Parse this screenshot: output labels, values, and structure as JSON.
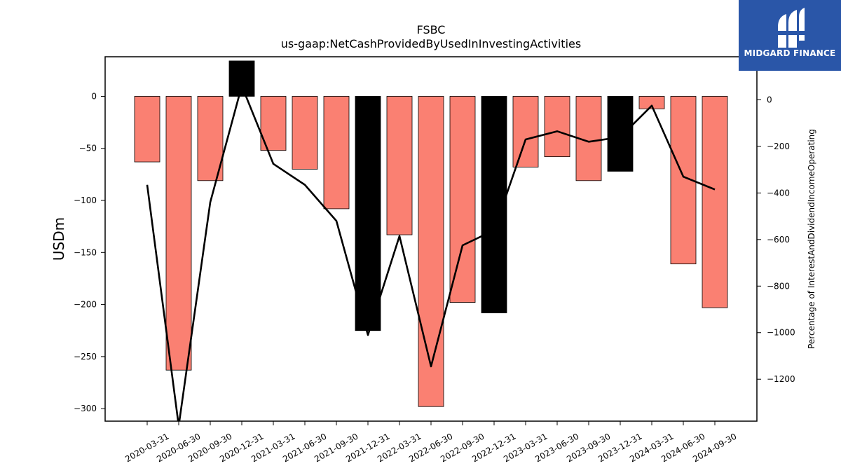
{
  "brand": {
    "name": "MIDGARD FINANCE",
    "color": "#2a56a8"
  },
  "chart_data": {
    "type": "bar",
    "title": "FSBC",
    "subtitle": "us-gaap:NetCashProvidedByUsedInInvestingActivities",
    "ylabel": "USDm",
    "ylabel_right": "Percentage of InterestAndDividendIncomeOperating",
    "categories": [
      "2020-03-31",
      "2020-06-30",
      "2020-09-30",
      "2020-12-31",
      "2021-03-31",
      "2021-06-30",
      "2021-09-30",
      "2021-12-31",
      "2022-03-31",
      "2022-06-30",
      "2022-09-30",
      "2022-12-31",
      "2023-03-31",
      "2023-06-30",
      "2023-09-30",
      "2023-12-31",
      "2024-03-31",
      "2024-06-30",
      "2024-09-30"
    ],
    "series": [
      {
        "values": [
          -63,
          -263,
          -81,
          34,
          -52,
          -70,
          -108,
          -225,
          -133,
          -298,
          -198,
          -208,
          -68,
          -58,
          -81,
          -72,
          -12,
          -161,
          -203
        ],
        "colors": [
          "#fa8072",
          "#fa8072",
          "#fa8072",
          "#000000",
          "#fa8072",
          "#fa8072",
          "#fa8072",
          "#000000",
          "#fa8072",
          "#fa8072",
          "#fa8072",
          "#000000",
          "#fa8072",
          "#fa8072",
          "#fa8072",
          "#000000",
          "#fa8072",
          "#fa8072",
          "#fa8072"
        ],
        "axis": "left"
      },
      {
        "values": [
          -365,
          -1400,
          -440,
          60,
          -275,
          -365,
          -520,
          -1010,
          -585,
          -1145,
          -625,
          -560,
          -170,
          -135,
          -180,
          -160,
          -25,
          -330,
          -385
        ],
        "color": "#000000",
        "type": "line",
        "axis": "right"
      }
    ],
    "ylim": [
      -312,
      38
    ],
    "ylim_right": [
      -1380,
      185
    ],
    "yticks": [
      0,
      -50,
      -100,
      -150,
      -200,
      -250,
      -300
    ],
    "yticks_right": [
      0,
      -200,
      -400,
      -600,
      -800,
      -1000,
      -1200
    ],
    "grid": false,
    "legend": "none"
  }
}
